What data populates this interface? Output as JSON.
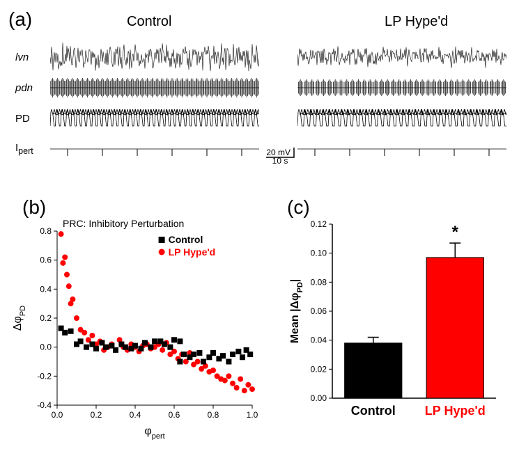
{
  "panels": {
    "a": {
      "label": "(a)"
    },
    "b": {
      "label": "(b)"
    },
    "c": {
      "label": "(c)"
    }
  },
  "titles": {
    "control": "Control",
    "hyped": "LP Hype'd"
  },
  "traces": {
    "labels": [
      "lvn",
      "pdn",
      "PD",
      "I"
    ],
    "labels_italic": [
      true,
      true,
      false,
      false
    ],
    "sub": [
      null,
      null,
      null,
      "pert"
    ],
    "subscripts_style": "normal"
  },
  "scalebar": {
    "v_label": "20 mV",
    "h_label": "10 s"
  },
  "prc": {
    "title": "PRC: Inhibitory Perturbation",
    "title_fontsize": 14,
    "xlabel": "φ",
    "xlabel_sub": "pert",
    "ylabel": "Δφ",
    "ylabel_sub": "PD",
    "xlim": [
      0,
      1.0
    ],
    "ylim": [
      -0.4,
      0.8
    ],
    "xticks": [
      0.0,
      0.2,
      0.4,
      0.6,
      0.8,
      1.0
    ],
    "yticks": [
      -0.4,
      -0.2,
      0.0,
      0.2,
      0.4,
      0.6,
      0.8
    ],
    "legend": {
      "control": "Control",
      "hyped": "LP Hype'd"
    },
    "colors": {
      "control": "#000000",
      "hyped": "#ff0000"
    },
    "marker_size": 4,
    "control_points": [
      [
        0.02,
        0.13
      ],
      [
        0.04,
        0.1
      ],
      [
        0.07,
        0.11
      ],
      [
        0.1,
        0.02
      ],
      [
        0.12,
        0.04
      ],
      [
        0.15,
        0.0
      ],
      [
        0.18,
        0.02
      ],
      [
        0.2,
        -0.01
      ],
      [
        0.23,
        0.03
      ],
      [
        0.25,
        0.0
      ],
      [
        0.28,
        0.01
      ],
      [
        0.3,
        -0.02
      ],
      [
        0.33,
        0.02
      ],
      [
        0.35,
        0.0
      ],
      [
        0.38,
        -0.01
      ],
      [
        0.4,
        0.01
      ],
      [
        0.43,
        -0.01
      ],
      [
        0.45,
        0.03
      ],
      [
        0.48,
        0.0
      ],
      [
        0.5,
        0.04
      ],
      [
        0.53,
        0.04
      ],
      [
        0.55,
        0.02
      ],
      [
        0.58,
        0.0
      ],
      [
        0.6,
        0.05
      ],
      [
        0.63,
        0.04
      ],
      [
        0.63,
        -0.1
      ],
      [
        0.65,
        -0.05
      ],
      [
        0.68,
        -0.07
      ],
      [
        0.7,
        -0.05
      ],
      [
        0.73,
        -0.04
      ],
      [
        0.75,
        -0.1
      ],
      [
        0.78,
        -0.07
      ],
      [
        0.8,
        -0.04
      ],
      [
        0.83,
        -0.08
      ],
      [
        0.85,
        -0.06
      ],
      [
        0.88,
        -0.1
      ],
      [
        0.9,
        -0.05
      ],
      [
        0.93,
        -0.03
      ],
      [
        0.95,
        -0.07
      ],
      [
        0.97,
        -0.02
      ],
      [
        0.99,
        -0.05
      ]
    ],
    "hyped_points": [
      [
        0.02,
        0.78
      ],
      [
        0.03,
        0.58
      ],
      [
        0.04,
        0.62
      ],
      [
        0.05,
        0.5
      ],
      [
        0.06,
        0.42
      ],
      [
        0.07,
        0.3
      ],
      [
        0.08,
        0.33
      ],
      [
        0.1,
        0.2
      ],
      [
        0.12,
        0.12
      ],
      [
        0.14,
        0.1
      ],
      [
        0.16,
        0.05
      ],
      [
        0.18,
        0.08
      ],
      [
        0.2,
        0.02
      ],
      [
        0.22,
        0.04
      ],
      [
        0.24,
        -0.02
      ],
      [
        0.26,
        0.0
      ],
      [
        0.28,
        0.02
      ],
      [
        0.3,
        -0.02
      ],
      [
        0.32,
        0.05
      ],
      [
        0.34,
        0.0
      ],
      [
        0.36,
        -0.02
      ],
      [
        0.38,
        0.02
      ],
      [
        0.4,
        0.0
      ],
      [
        0.42,
        -0.03
      ],
      [
        0.44,
        0.01
      ],
      [
        0.46,
        0.02
      ],
      [
        0.48,
        -0.01
      ],
      [
        0.5,
        0.0
      ],
      [
        0.52,
        0.02
      ],
      [
        0.54,
        -0.02
      ],
      [
        0.56,
        0.03
      ],
      [
        0.58,
        -0.05
      ],
      [
        0.6,
        -0.03
      ],
      [
        0.62,
        -0.08
      ],
      [
        0.64,
        -0.05
      ],
      [
        0.66,
        -0.1
      ],
      [
        0.68,
        -0.04
      ],
      [
        0.7,
        -0.12
      ],
      [
        0.72,
        -0.1
      ],
      [
        0.74,
        -0.15
      ],
      [
        0.76,
        -0.13
      ],
      [
        0.78,
        -0.17
      ],
      [
        0.8,
        -0.16
      ],
      [
        0.82,
        -0.2
      ],
      [
        0.84,
        -0.22
      ],
      [
        0.86,
        -0.23
      ],
      [
        0.88,
        -0.2
      ],
      [
        0.9,
        -0.25
      ],
      [
        0.92,
        -0.28
      ],
      [
        0.94,
        -0.22
      ],
      [
        0.96,
        -0.3
      ],
      [
        0.98,
        -0.26
      ],
      [
        1.0,
        -0.29
      ]
    ]
  },
  "bar": {
    "ylabel": "Mean |Δφ",
    "ylabel_sub": "PD",
    "ylabel_suffix": "|",
    "ylim": [
      0,
      0.12
    ],
    "yticks": [
      0.0,
      0.02,
      0.04,
      0.06,
      0.08,
      0.1,
      0.12
    ],
    "categories": [
      "Control",
      "LP Hype'd"
    ],
    "values": [
      0.038,
      0.097
    ],
    "errors": [
      0.004,
      0.01
    ],
    "colors": [
      "#000000",
      "#ff0000"
    ],
    "label_colors": [
      "#000000",
      "#ff0000"
    ],
    "sig_marker": "*",
    "sig_fontsize": 24,
    "axis_fontsize": 12,
    "cat_fontsize": 18,
    "cat_fontweight": "bold"
  }
}
